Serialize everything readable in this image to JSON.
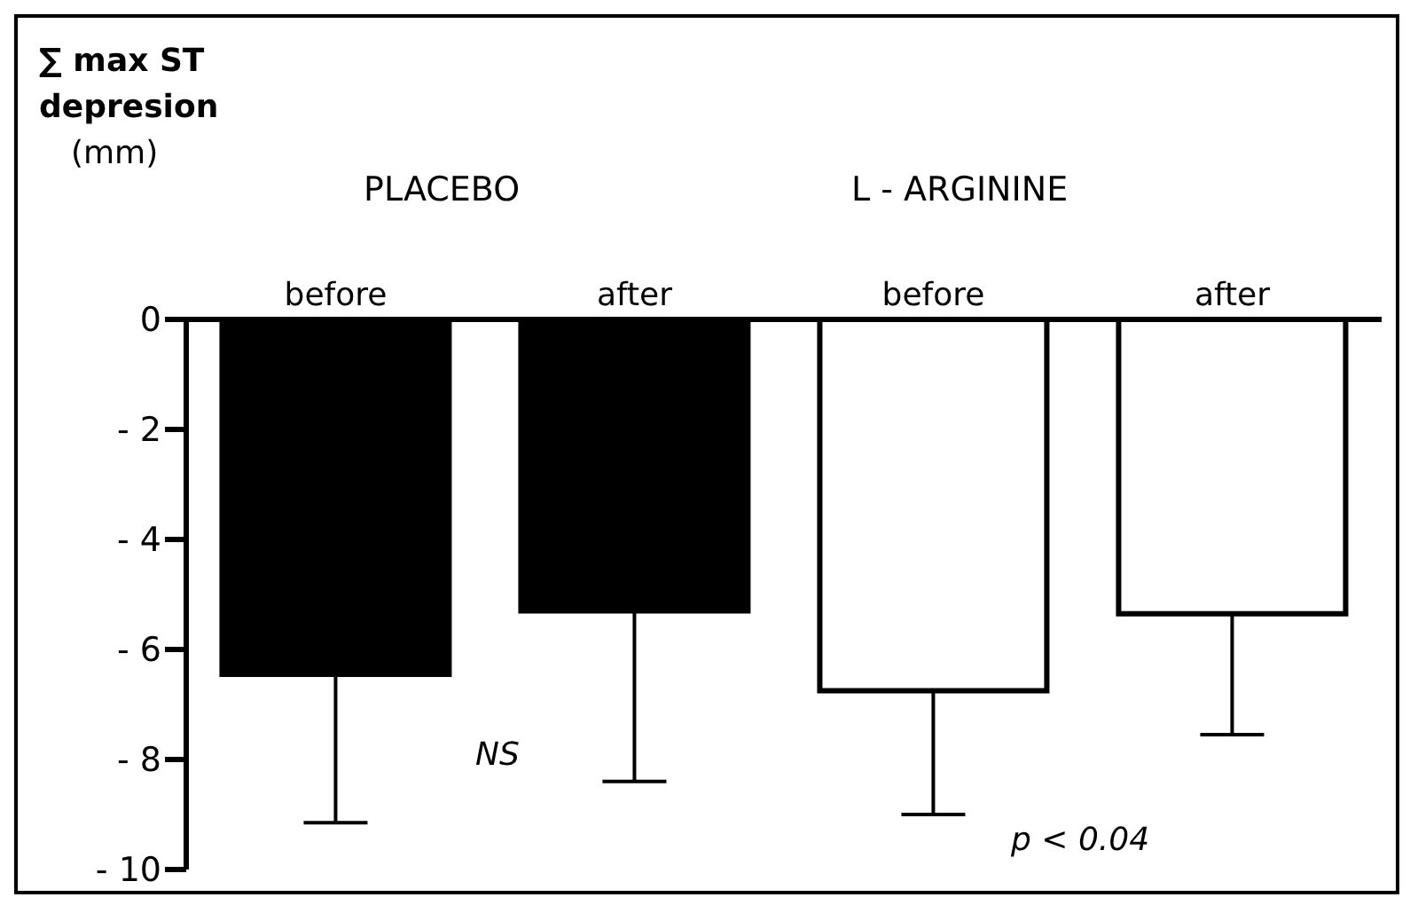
{
  "chart_data": {
    "type": "bar",
    "ylabel": "∑ max ST depresion (mm)",
    "categories": [
      "before",
      "after",
      "before",
      "after"
    ],
    "values": [
      -6.45,
      -5.3,
      -6.75,
      -5.35
    ],
    "colors": [
      "#000000",
      "#000000",
      "#ffffff",
      "#ffffff"
    ],
    "errors": [
      [
        -9.15,
        -6.45
      ],
      [
        -8.4,
        -5.3
      ],
      [
        -9.0,
        -6.75
      ],
      [
        -7.55,
        -5.35
      ]
    ],
    "ylim": [
      -10,
      0
    ],
    "yticks": [
      0,
      {
        "value": -2,
        "label": "-  2"
      },
      {
        "value": -4,
        "label": "-  4"
      },
      {
        "value": -6,
        "label": "-  6"
      },
      {
        "value": -8,
        "label": "-  8"
      },
      {
        "value": -10,
        "label": "- 10"
      }
    ],
    "annotations": [
      "PLACEBO",
      "L - ARGININE",
      "NS",
      "p < 0.04"
    ],
    "grid": false,
    "legend": false
  }
}
